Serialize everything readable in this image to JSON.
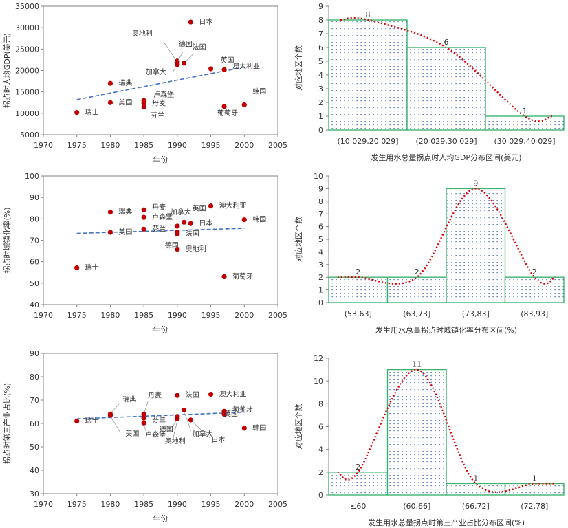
{
  "chart_data": [
    {
      "type": "scatter",
      "id": "scatter-gdp",
      "title": "",
      "xlabel": "年份",
      "ylabel": "拐点时人均GDP(美元)",
      "xlim": [
        1970,
        2005
      ],
      "ylim": [
        5000,
        35000
      ],
      "xticks": [
        1970,
        1975,
        1980,
        1985,
        1990,
        1995,
        2000,
        2005
      ],
      "yticks": [
        5000,
        10000,
        15000,
        20000,
        25000,
        30000,
        35000
      ],
      "trendline": {
        "x": [
          1975,
          2000
        ],
        "y": [
          13200,
          20800
        ]
      },
      "points": [
        {
          "label": "瑞士",
          "x": 1975,
          "y": 10200
        },
        {
          "label": "瑞典",
          "x": 1980,
          "y": 17000
        },
        {
          "label": "美国",
          "x": 1980,
          "y": 12500
        },
        {
          "label": "卢森堡",
          "x": 1985,
          "y": 13000
        },
        {
          "label": "丹麦",
          "x": 1985,
          "y": 12300
        },
        {
          "label": "芬兰",
          "x": 1985,
          "y": 11500
        },
        {
          "label": "奥地利",
          "x": 1990,
          "y": 22200
        },
        {
          "label": "德国",
          "x": 1990,
          "y": 21800
        },
        {
          "label": "加拿大",
          "x": 1990,
          "y": 21400
        },
        {
          "label": "法国",
          "x": 1991,
          "y": 21700
        },
        {
          "label": "日本",
          "x": 1992,
          "y": 31300
        },
        {
          "label": "英国",
          "x": 1995,
          "y": 20400
        },
        {
          "label": "澳大利亚",
          "x": 1997,
          "y": 20200
        },
        {
          "label": "葡萄牙",
          "x": 1997,
          "y": 11600
        },
        {
          "label": "韩国",
          "x": 2000,
          "y": 12000
        }
      ]
    },
    {
      "type": "histogram",
      "id": "hist-gdp",
      "xlabel": "发生用水总量拐点时人均GDP分布区间(美元)",
      "ylabel": "对应地区个数",
      "ylim": [
        0,
        9
      ],
      "yticks": [
        0,
        1,
        2,
        3,
        4,
        5,
        6,
        7,
        8,
        9
      ],
      "categories": [
        "(10 029,20 029]",
        "(20 029,30 029]",
        "(30 029,40 029]"
      ],
      "values": [
        8,
        6,
        1
      ]
    },
    {
      "type": "scatter",
      "id": "scatter-urban",
      "xlabel": "年份",
      "ylabel": "拐点时城镇化率(%)",
      "xlim": [
        1970,
        2005
      ],
      "ylim": [
        40,
        100
      ],
      "xticks": [
        1970,
        1975,
        1980,
        1985,
        1990,
        1995,
        2000,
        2005
      ],
      "yticks": [
        40,
        50,
        60,
        70,
        80,
        90,
        100
      ],
      "trendline": {
        "x": [
          1975,
          2000
        ],
        "y": [
          73.2,
          75.6
        ]
      },
      "points": [
        {
          "label": "瑞士",
          "x": 1975,
          "y": 57.2
        },
        {
          "label": "瑞典",
          "x": 1980,
          "y": 83.1
        },
        {
          "label": "美国",
          "x": 1980,
          "y": 73.7
        },
        {
          "label": "丹麦",
          "x": 1985,
          "y": 84.2
        },
        {
          "label": "卢森堡",
          "x": 1985,
          "y": 80.7
        },
        {
          "label": "芬兰",
          "x": 1985,
          "y": 75.2
        },
        {
          "label": "加拿大",
          "x": 1990,
          "y": 76.6
        },
        {
          "label": "法国",
          "x": 1990,
          "y": 73.8
        },
        {
          "label": "德国",
          "x": 1990,
          "y": 72.9
        },
        {
          "label": "奥地利",
          "x": 1990,
          "y": 65.8
        },
        {
          "label": "英国",
          "x": 1991,
          "y": 78.4
        },
        {
          "label": "日本",
          "x": 1992,
          "y": 77.8
        },
        {
          "label": "澳大利亚",
          "x": 1995,
          "y": 86.0
        },
        {
          "label": "葡萄牙",
          "x": 1997,
          "y": 53.0
        },
        {
          "label": "韩国",
          "x": 2000,
          "y": 79.6
        }
      ]
    },
    {
      "type": "histogram",
      "id": "hist-urban",
      "xlabel": "发生用水总量拐点时城镇化率分布区间(%)",
      "ylabel": "对应地区个数",
      "ylim": [
        0,
        10
      ],
      "yticks": [
        0,
        1,
        2,
        3,
        4,
        5,
        6,
        7,
        8,
        9,
        10
      ],
      "categories": [
        "(53,63]",
        "(63,73]",
        "(73,83]",
        "(83,93]"
      ],
      "values": [
        2,
        2,
        9,
        2
      ]
    },
    {
      "type": "scatter",
      "id": "scatter-tertiary",
      "xlabel": "年份",
      "ylabel": "拐点时第三产业占比(%)",
      "xlim": [
        1970,
        2005
      ],
      "ylim": [
        30,
        90
      ],
      "xticks": [
        1970,
        1975,
        1980,
        1985,
        1990,
        1995,
        2000,
        2005
      ],
      "yticks": [
        30,
        40,
        50,
        60,
        70,
        80,
        90
      ],
      "trendline": {
        "x": [
          1975,
          2000
        ],
        "y": [
          62.0,
          64.8
        ]
      },
      "points": [
        {
          "label": "瑞士",
          "x": 1975,
          "y": 61.0
        },
        {
          "label": "瑞典",
          "x": 1980,
          "y": 64.0
        },
        {
          "label": "美国",
          "x": 1980,
          "y": 63.5
        },
        {
          "label": "丹麦",
          "x": 1985,
          "y": 64.0
        },
        {
          "label": "芬兰",
          "x": 1985,
          "y": 62.3
        },
        {
          "label": "卢森堡",
          "x": 1985,
          "y": 60.2
        },
        {
          "label": "法国",
          "x": 1990,
          "y": 72.0
        },
        {
          "label": "德国",
          "x": 1990,
          "y": 63.0
        },
        {
          "label": "奥地利",
          "x": 1990,
          "y": 62.0
        },
        {
          "label": "加拿大",
          "x": 1991,
          "y": 65.7
        },
        {
          "label": "日本",
          "x": 1992,
          "y": 61.5
        },
        {
          "label": "澳大利亚",
          "x": 1995,
          "y": 72.5
        },
        {
          "label": "英国",
          "x": 1997,
          "y": 64.0
        },
        {
          "label": "葡萄牙",
          "x": 1997,
          "y": 65.2
        },
        {
          "label": "韩国",
          "x": 2000,
          "y": 58.0
        }
      ]
    },
    {
      "type": "histogram",
      "id": "hist-tertiary",
      "xlabel": "发生用水总量拐点时第三产业占比分布区间(%)",
      "ylabel": "对应地区个数",
      "ylim": [
        0,
        12
      ],
      "yticks": [
        0,
        2,
        4,
        6,
        8,
        10,
        12
      ],
      "categories": [
        "≤60",
        "(60,66]",
        "(66,72]",
        "(72,78]"
      ],
      "values": [
        2,
        11,
        1,
        1
      ]
    }
  ],
  "colors": {
    "point": "#c00000",
    "trend": "#4472c4",
    "bar_edge": "#3cb371",
    "bar_dots": "#2e5aa8",
    "curve": "#e00000",
    "axis": "#808080"
  }
}
